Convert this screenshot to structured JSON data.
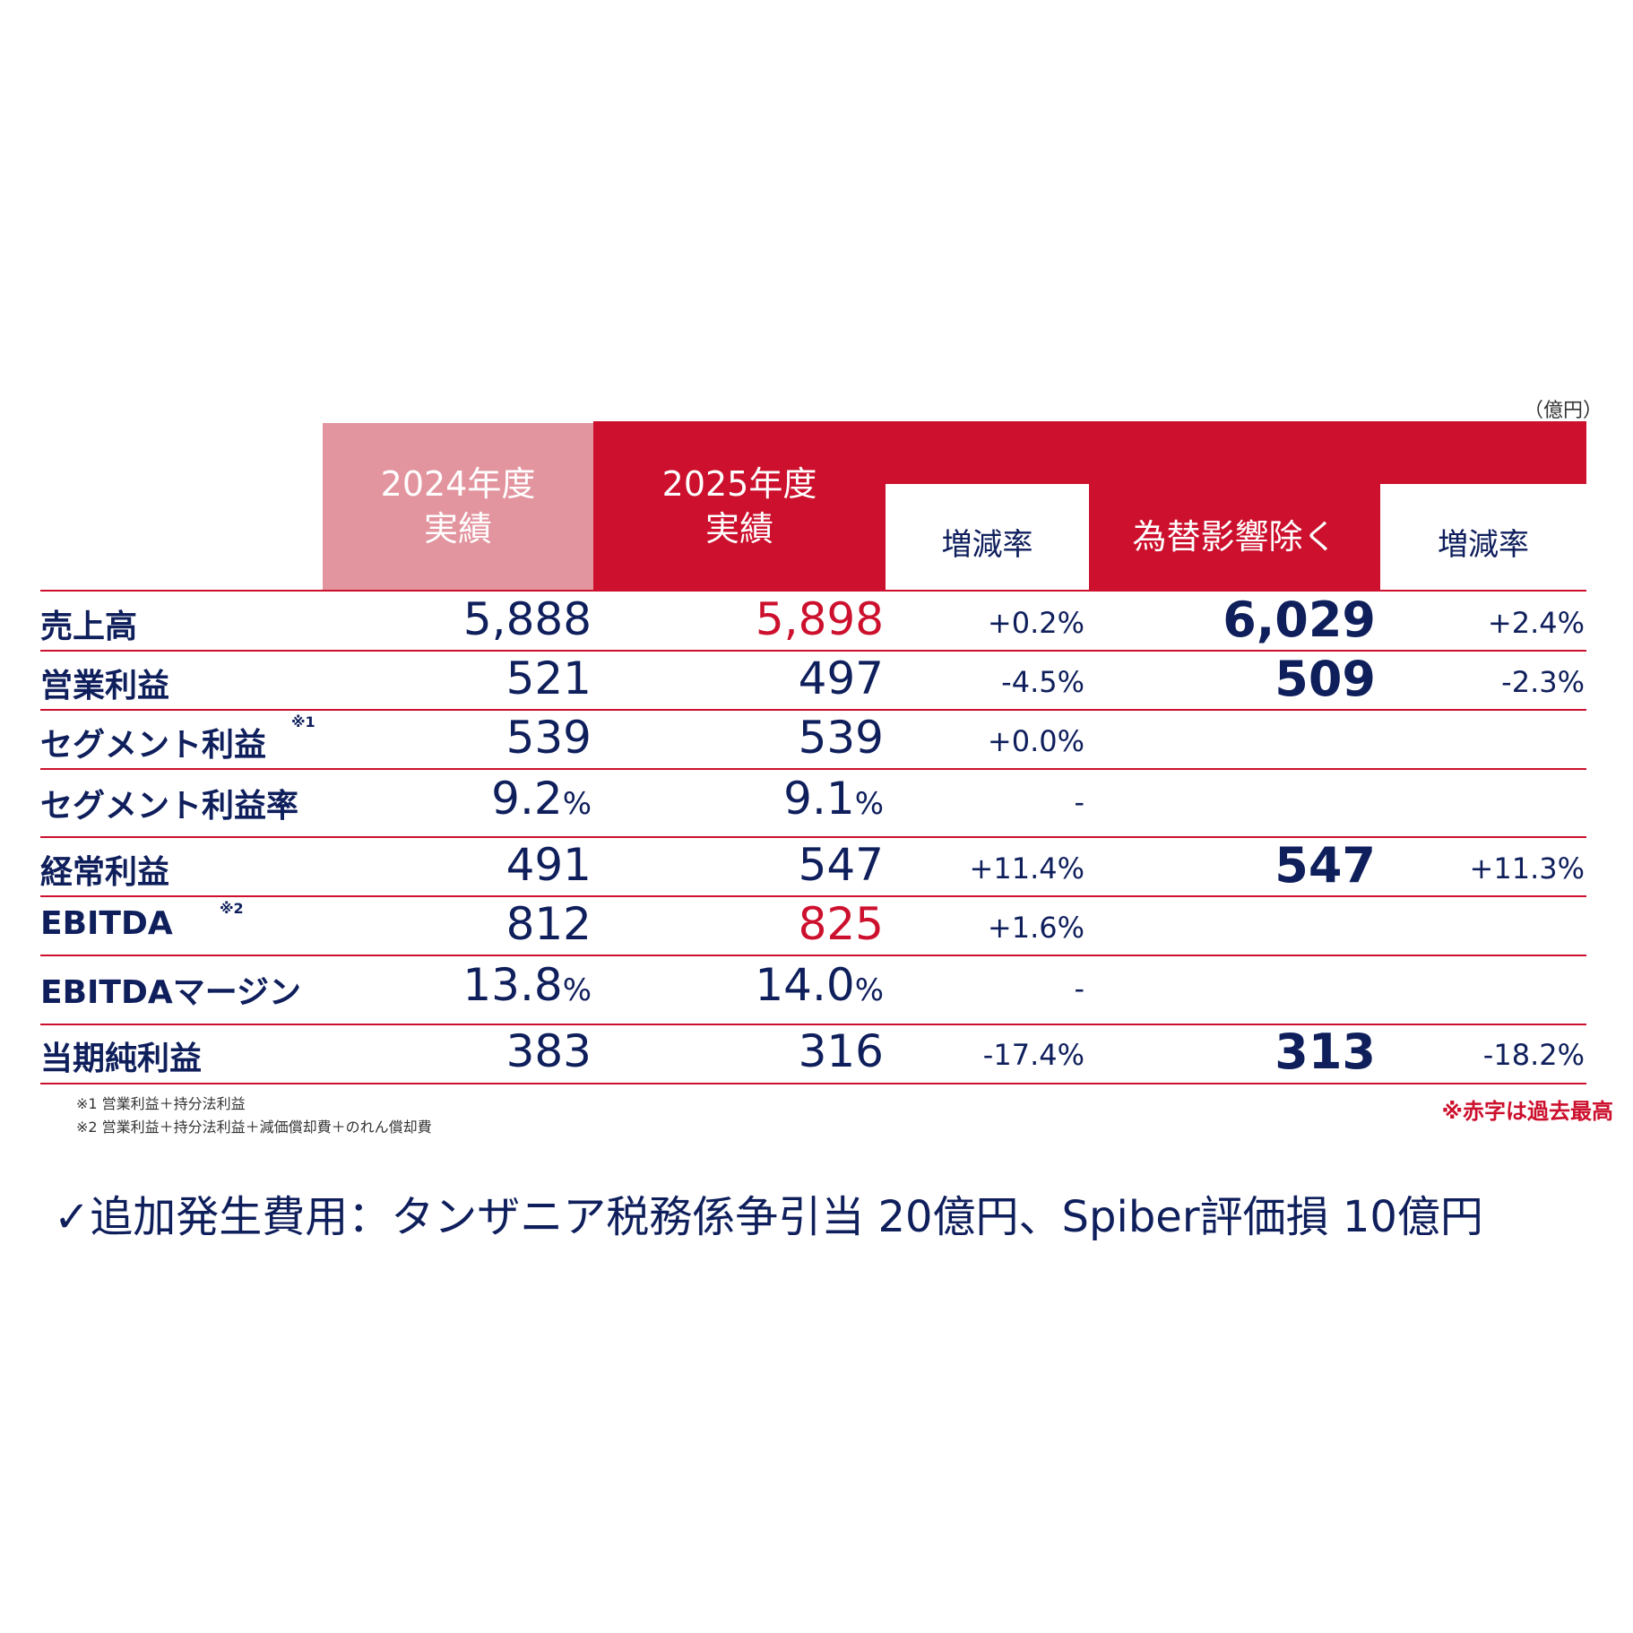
{
  "unit": "（億円）",
  "header": {
    "col_2024": [
      "2024年度",
      "実績"
    ],
    "col_2025": [
      "2025年度",
      "実績"
    ],
    "change": "増減率",
    "fx_excluded": "為替影響除く",
    "change_fx": "増減率"
  },
  "rows": [
    {
      "label": "売上高",
      "note": "",
      "v2024": "5,888",
      "v2025": "5,898",
      "v2025_red": true,
      "change": "+0.2%",
      "fx": "6,029",
      "fx_change": "+2.4%"
    },
    {
      "label": "営業利益",
      "note": "",
      "v2024": "521",
      "v2025": "497",
      "v2025_red": false,
      "change": "-4.5%",
      "fx": "509",
      "fx_change": "-2.3%"
    },
    {
      "label": "セグメント利益",
      "note": "※1",
      "v2024": "539",
      "v2025": "539",
      "v2025_red": false,
      "change": "+0.0%",
      "fx": "",
      "fx_change": ""
    },
    {
      "label": "セグメント利益率",
      "note": "",
      "v2024": "9.2",
      "v2025": "9.1",
      "v2025_red": false,
      "change": "-",
      "fx": "",
      "fx_change": "",
      "percent": "%"
    },
    {
      "label": "経常利益",
      "note": "",
      "v2024": "491",
      "v2025": "547",
      "v2025_red": false,
      "change": "+11.4%",
      "fx": "547",
      "fx_change": "+11.3%"
    },
    {
      "label": "EBITDA",
      "note": "※2",
      "v2024": "812",
      "v2025": "825",
      "v2025_red": true,
      "change": "+1.6%",
      "fx": "",
      "fx_change": ""
    },
    {
      "label": "EBITDAマージン",
      "note": "",
      "v2024": "13.8",
      "v2025": "14.0",
      "v2025_red": false,
      "change": "-",
      "fx": "",
      "fx_change": "",
      "percent": "%"
    },
    {
      "label": "当期純利益",
      "note": "",
      "v2024": "383",
      "v2025": "316",
      "v2025_red": false,
      "change": "-17.4%",
      "fx": "313",
      "fx_change": "-18.2%"
    }
  ],
  "footnotes": [
    "※1  営業利益＋持分法利益",
    "※2  営業利益＋持分法利益＋減価償却費＋のれん償却費"
  ],
  "record_note": "※赤字は過去最高",
  "bottom_text": "✓追加発生費用：タンザニア税務係争引当 20億円、Spiber評価損 10億円",
  "colors": {
    "red": "#cc102d",
    "pink": "#e3959f",
    "navy": "#0f1f5c"
  }
}
